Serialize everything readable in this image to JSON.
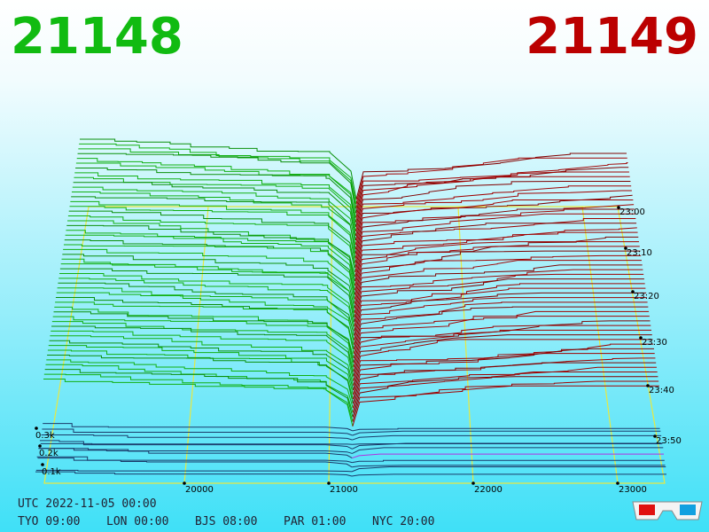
{
  "header": {
    "bid_price": "21148",
    "ask_price": "21149"
  },
  "axes": {
    "price_ticks": [
      "20000",
      "21000",
      "22000",
      "23000"
    ],
    "time_ticks": [
      "23:00",
      "23:10",
      "23:20",
      "23:30",
      "23:40",
      "23:50"
    ],
    "depth_ticks": [
      "0.3k",
      "0.2k",
      "0.1k"
    ]
  },
  "footer": {
    "utc": "UTC 2022-11-05 00:00",
    "cities": [
      "TYO 09:00",
      "LON 00:00",
      "BJS 08:00",
      "PAR 01:00",
      "NYC 20:00"
    ]
  }
}
